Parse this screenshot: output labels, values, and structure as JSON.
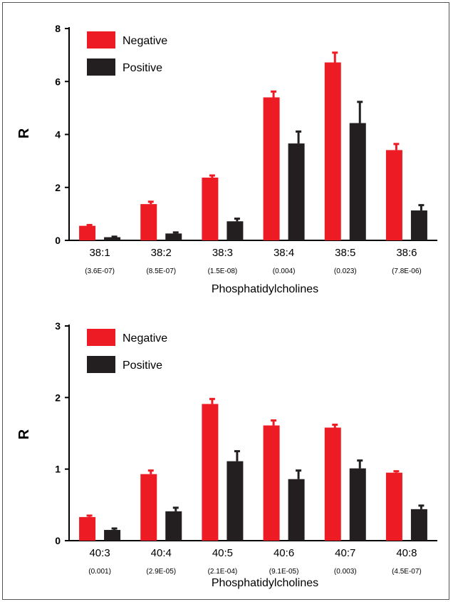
{
  "colors": {
    "negative": "#ed1c24",
    "positive": "#231f20",
    "axis": "#000000"
  },
  "chart_data": [
    {
      "type": "bar",
      "ylabel": "R",
      "xlabel": "Phosphatidylcholines",
      "ylim": [
        0,
        8
      ],
      "yticks": [
        "0",
        "2",
        "4",
        "6",
        "8"
      ],
      "categories": [
        "38:1",
        "38:2",
        "38:3",
        "38:4",
        "38:5",
        "38:6"
      ],
      "pvalues": [
        "(3.6E-07)",
        "(8.5E-07)",
        "(1.5E-08)",
        "(0.004)",
        "(0.023)",
        "(7.8E-06)"
      ],
      "legend_position": "top-left",
      "series": [
        {
          "name": "Negative",
          "values": [
            0.55,
            1.37,
            2.37,
            5.4,
            6.72,
            3.41
          ],
          "errors": [
            0.03,
            0.09,
            0.08,
            0.22,
            0.37,
            0.23
          ]
        },
        {
          "name": "Positive",
          "values": [
            0.12,
            0.26,
            0.72,
            3.66,
            4.43,
            1.13
          ],
          "errors": [
            0.02,
            0.04,
            0.1,
            0.45,
            0.8,
            0.2
          ]
        }
      ]
    },
    {
      "type": "bar",
      "ylabel": "R",
      "xlabel": "Phosphatidylcholines",
      "ylim": [
        0,
        3
      ],
      "yticks": [
        "0",
        "1",
        "2",
        "3"
      ],
      "categories": [
        "40:3",
        "40:4",
        "40:5",
        "40:6",
        "40:7",
        "40:8"
      ],
      "pvalues": [
        "(0.001)",
        "(2.9E-05)",
        "(2.1E-04)",
        "(9.1E-05)",
        "(0.003)",
        "(4.5E-07)"
      ],
      "legend_position": "top-left",
      "series": [
        {
          "name": "Negative",
          "values": [
            0.33,
            0.93,
            1.91,
            1.61,
            1.58,
            0.95
          ],
          "errors": [
            0.02,
            0.05,
            0.07,
            0.07,
            0.04,
            0.02
          ]
        },
        {
          "name": "Positive",
          "values": [
            0.15,
            0.41,
            1.11,
            0.86,
            1.01,
            0.44
          ],
          "errors": [
            0.02,
            0.05,
            0.14,
            0.12,
            0.11,
            0.05
          ]
        }
      ]
    }
  ]
}
